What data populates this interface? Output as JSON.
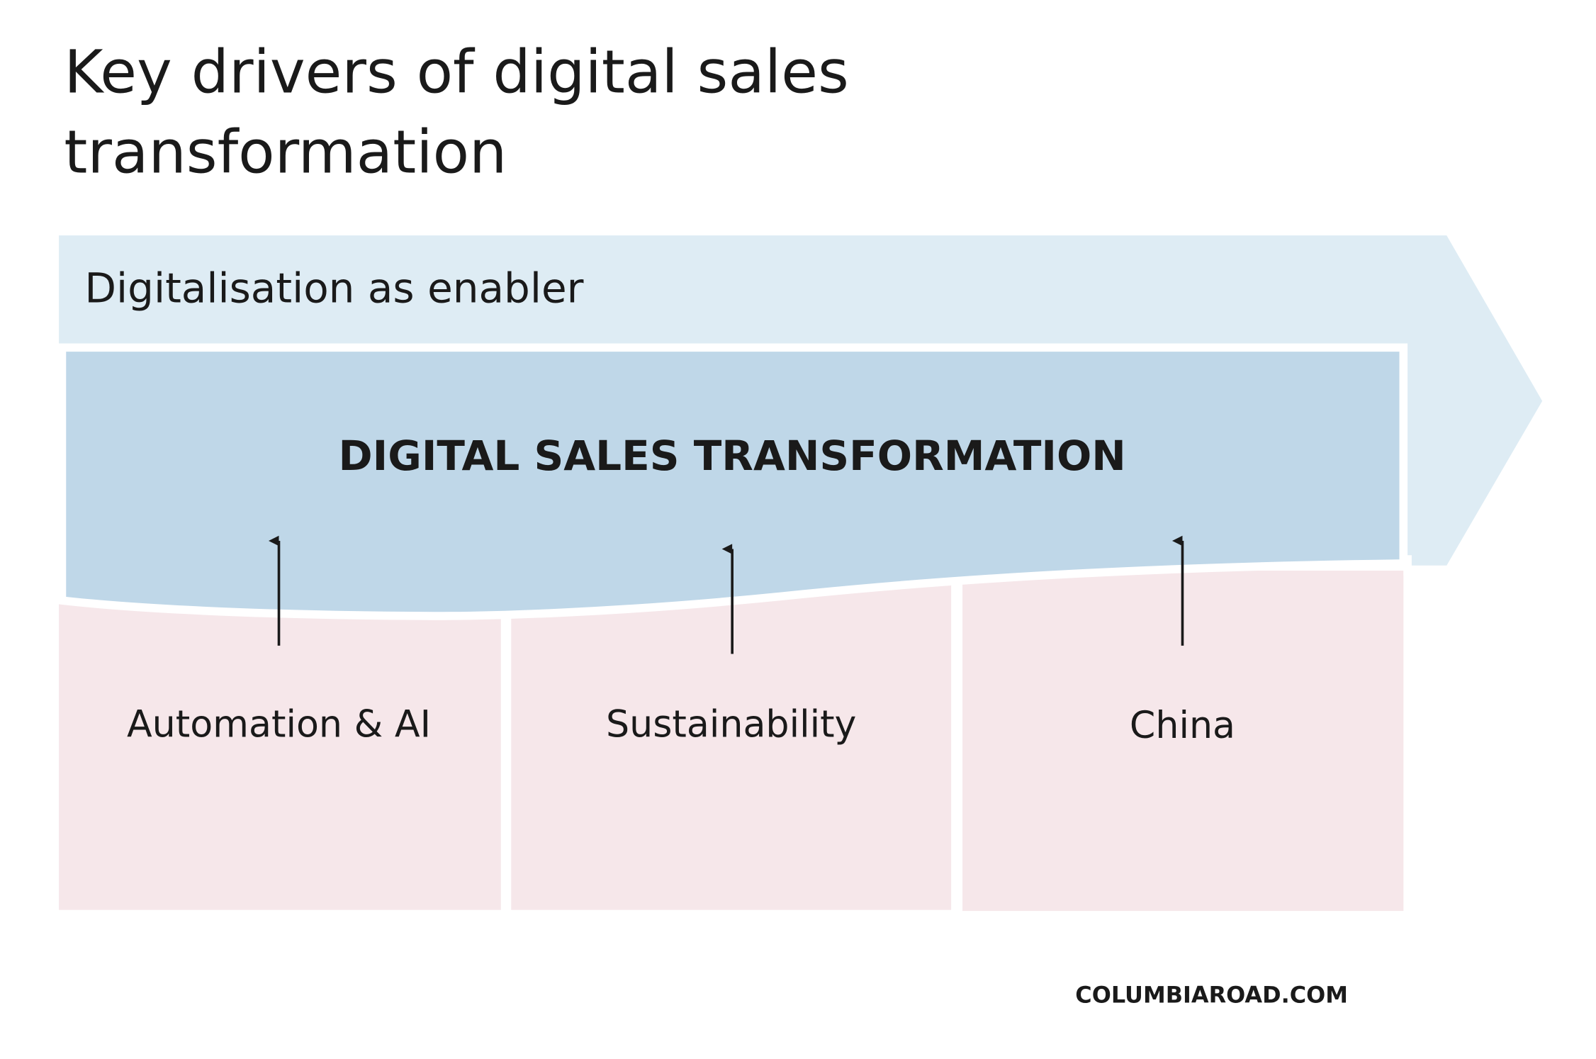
{
  "header": {
    "title": [
      "Key drivers of digital sales",
      "transformation"
    ]
  },
  "enabler": {
    "label": "Digitalisation as enabler"
  },
  "core": {
    "label": "DIGITAL SALES TRANSFORMATION"
  },
  "drivers": [
    "Automation & AI",
    "Sustainability",
    "China"
  ],
  "footer": {
    "brand": "COLUMBIAROAD.COM"
  }
}
